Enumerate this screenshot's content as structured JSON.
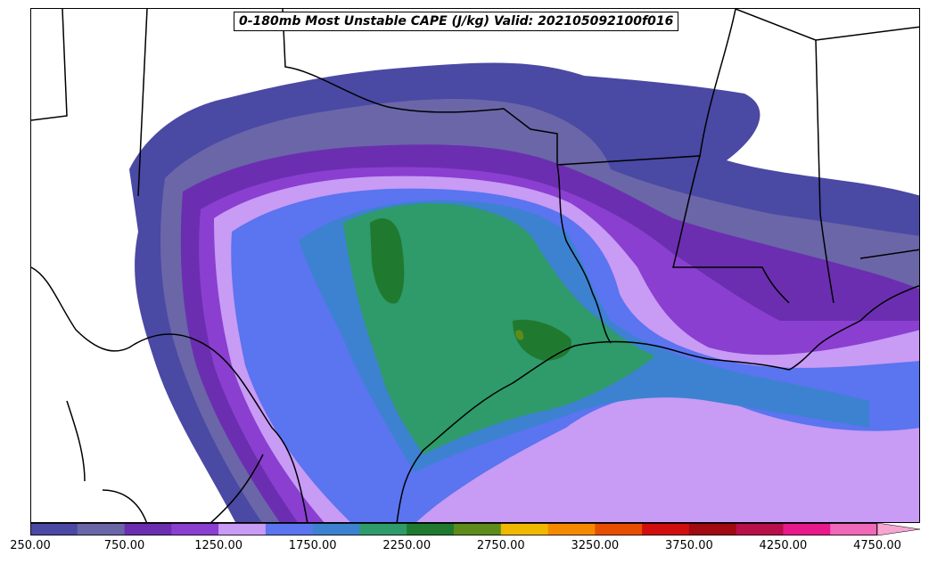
{
  "title": "0-180mb Most Unstable CAPE (J/kg) Valid: 202105092100f016",
  "colorbar": {
    "levels": [
      250,
      500,
      750,
      1000,
      1250,
      1500,
      1750,
      2000,
      2250,
      2500,
      2750,
      3000,
      3250,
      3500,
      3750,
      4000,
      4250,
      4500,
      4750
    ],
    "colors": [
      "#4a49a4",
      "#6a66a8",
      "#6c2eb0",
      "#8a3fd0",
      "#c89bf5",
      "#5b74f0",
      "#3c82d0",
      "#2f9a6a",
      "#1f7a30",
      "#5e8c1a",
      "#f0b800",
      "#f58a00",
      "#e84e00",
      "#d10d0d",
      "#a00a10",
      "#b8104a",
      "#e8198a",
      "#f068b8"
    ],
    "extend_color": "#f7a6d4",
    "tick_labels": [
      "250.00",
      "750.00",
      "1250.00",
      "1750.00",
      "2250.00",
      "2750.00",
      "3250.00",
      "3750.00",
      "4250.00",
      "4750.00"
    ]
  }
}
